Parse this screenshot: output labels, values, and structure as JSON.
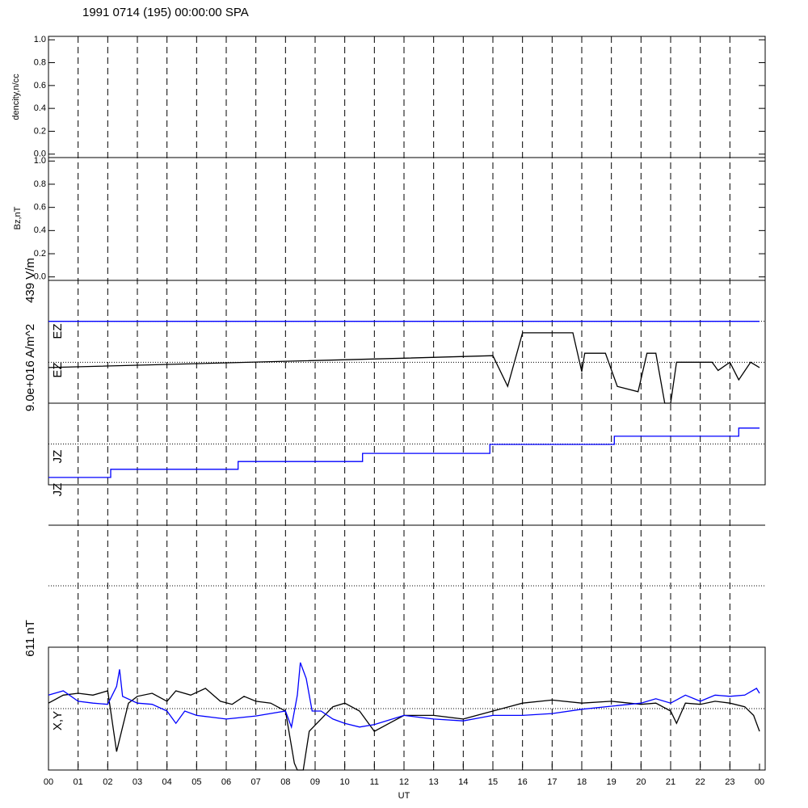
{
  "chart_data": [
    {
      "type": "line",
      "title": "1991 0714 (195) 00:00:00 SPA",
      "ylabel": "dencity,n/cc",
      "ylim": [
        -0.03,
        1.03
      ],
      "yticks": [
        {
          "value": 0,
          "label": "0.0"
        },
        {
          "value": 0.2,
          "label": "0.2"
        },
        {
          "value": 0.4,
          "label": "0.4"
        },
        {
          "value": 0.6,
          "label": "0.6"
        },
        {
          "value": 0.8,
          "label": "0.8"
        },
        {
          "value": 1,
          "label": "1.0"
        }
      ],
      "series": []
    },
    {
      "type": "line",
      "ylabel": "Bz,nT",
      "ylim": [
        -0.03,
        1.03
      ],
      "yticks": [
        {
          "value": 0,
          "label": "0.0"
        },
        {
          "value": 0.2,
          "label": "0.2"
        },
        {
          "value": 0.4,
          "label": "0.4"
        },
        {
          "value": 0.6,
          "label": "0.6"
        },
        {
          "value": 0.8,
          "label": "0.8"
        },
        {
          "value": 1,
          "label": "1.0"
        }
      ],
      "series": []
    },
    {
      "type": "line",
      "ylabel": "439 V/m",
      "labels": [
        "EZ",
        "EZ"
      ],
      "ylim": [
        0,
        3
      ],
      "reference_lines": [
        2,
        1
      ],
      "series": [
        {
          "color": "#0000ff",
          "x": [
            0,
            24
          ],
          "values": [
            2,
            2
          ]
        },
        {
          "color": "#000000",
          "x": [
            0,
            12,
            15,
            15.5,
            16,
            17.7,
            18,
            18.1,
            18.8,
            19.2,
            19.9,
            20.2,
            20.5,
            20.8,
            21,
            21.2,
            22.4,
            22.6,
            23,
            23.3,
            23.7,
            24
          ],
          "values": [
            0.87,
            1.1,
            1.16,
            0.41,
            1.72,
            1.72,
            0.77,
            1.22,
            1.22,
            0.41,
            0.28,
            1.22,
            1.22,
            0,
            0,
            1.0,
            1.0,
            0.8,
            1.0,
            0.57,
            1.0,
            0.87
          ]
        }
      ]
    },
    {
      "type": "line",
      "ylabel": "9.0e+016 A/m^2",
      "labels": [
        "JZ",
        "JZ"
      ],
      "ylim": [
        0,
        2
      ],
      "reference_lines": [
        1,
        0
      ],
      "series": [
        {
          "color": "#0000ff",
          "x": [
            0,
            2.1,
            2.1,
            6.4,
            6.4,
            10.6,
            10.6,
            14.9,
            14.9,
            19.1,
            19.1,
            23.3,
            23.3,
            24
          ],
          "values": [
            0.18,
            0.18,
            0.38,
            0.38,
            0.57,
            0.57,
            0.77,
            0.77,
            0.99,
            0.99,
            1.19,
            1.19,
            1.39,
            1.39
          ]
        }
      ]
    },
    {
      "type": "line",
      "ylabel": "611 nT",
      "labels": [
        "X,Y"
      ],
      "ylim": [
        -1,
        1
      ],
      "reference_lines": [
        0,
        -1
      ],
      "xlabel": "UT",
      "xlim": [
        0,
        24
      ],
      "xticks": [
        {
          "value": 0,
          "label": "00"
        },
        {
          "value": 1,
          "label": "01"
        },
        {
          "value": 2,
          "label": "02"
        },
        {
          "value": 3,
          "label": "03"
        },
        {
          "value": 4,
          "label": "04"
        },
        {
          "value": 5,
          "label": "05"
        },
        {
          "value": 6,
          "label": "06"
        },
        {
          "value": 7,
          "label": "07"
        },
        {
          "value": 8,
          "label": "08"
        },
        {
          "value": 9,
          "label": "09"
        },
        {
          "value": 10,
          "label": "10"
        },
        {
          "value": 11,
          "label": "11"
        },
        {
          "value": 12,
          "label": "12"
        },
        {
          "value": 13,
          "label": "13"
        },
        {
          "value": 14,
          "label": "14"
        },
        {
          "value": 15,
          "label": "15"
        },
        {
          "value": 16,
          "label": "16"
        },
        {
          "value": 17,
          "label": "17"
        },
        {
          "value": 18,
          "label": "18"
        },
        {
          "value": 19,
          "label": "19"
        },
        {
          "value": 20,
          "label": "20"
        },
        {
          "value": 21,
          "label": "21"
        },
        {
          "value": 22,
          "label": "22"
        },
        {
          "value": 23,
          "label": "23"
        },
        {
          "value": 24,
          "label": "00"
        }
      ],
      "series": [
        {
          "color": "#000000",
          "x": [
            0,
            0.5,
            1,
            1.5,
            2,
            2.1,
            2.3,
            2.5,
            2.7,
            3,
            3.5,
            4,
            4.3,
            4.8,
            5.3,
            5.8,
            6.2,
            6.6,
            7,
            7.5,
            8,
            8.3,
            8.4,
            8.6,
            8.8,
            9.2,
            9.6,
            10,
            10.5,
            11,
            11.5,
            12,
            13,
            14,
            15,
            16,
            17,
            18,
            19,
            20,
            20.5,
            21,
            21.2,
            21.5,
            22,
            22.5,
            23,
            23.5,
            23.8,
            24
          ],
          "values": [
            0.09,
            0.22,
            0.25,
            0.22,
            0.29,
            -0.04,
            -0.7,
            -0.3,
            0.09,
            0.2,
            0.25,
            0.12,
            0.29,
            0.22,
            0.33,
            0.12,
            0.07,
            0.2,
            0.12,
            0.09,
            -0.04,
            -0.89,
            -1.0,
            -1.0,
            -0.37,
            -0.17,
            0.03,
            0.09,
            -0.04,
            -0.37,
            -0.24,
            -0.11,
            -0.11,
            -0.17,
            -0.04,
            0.09,
            0.14,
            0.09,
            0.12,
            0.07,
            0.09,
            -0.04,
            -0.24,
            0.09,
            0.07,
            0.12,
            0.09,
            0.03,
            -0.11,
            -0.37
          ]
        },
        {
          "color": "#0000ff",
          "x": [
            0,
            0.5,
            1,
            1.5,
            2,
            2.3,
            2.4,
            2.5,
            3,
            3.5,
            4,
            4.3,
            4.6,
            5,
            5.5,
            6,
            7,
            8,
            8.2,
            8.4,
            8.5,
            8.7,
            8.9,
            9.2,
            9.6,
            10,
            10.5,
            11,
            12,
            13,
            14,
            15,
            16,
            17,
            18,
            19,
            20,
            20.5,
            21,
            21.5,
            22,
            22.5,
            23,
            23.5,
            23.9,
            24
          ],
          "values": [
            0.22,
            0.29,
            0.12,
            0.09,
            0.07,
            0.36,
            0.64,
            0.2,
            0.09,
            0.07,
            -0.04,
            -0.24,
            -0.04,
            -0.11,
            -0.14,
            -0.17,
            -0.12,
            -0.04,
            -0.3,
            0.22,
            0.75,
            0.49,
            -0.04,
            -0.04,
            -0.17,
            -0.24,
            -0.3,
            -0.26,
            -0.11,
            -0.17,
            -0.2,
            -0.11,
            -0.11,
            -0.08,
            -0.01,
            0.04,
            0.09,
            0.16,
            0.09,
            0.22,
            0.12,
            0.22,
            0.2,
            0.22,
            0.33,
            0.25
          ]
        }
      ]
    }
  ]
}
